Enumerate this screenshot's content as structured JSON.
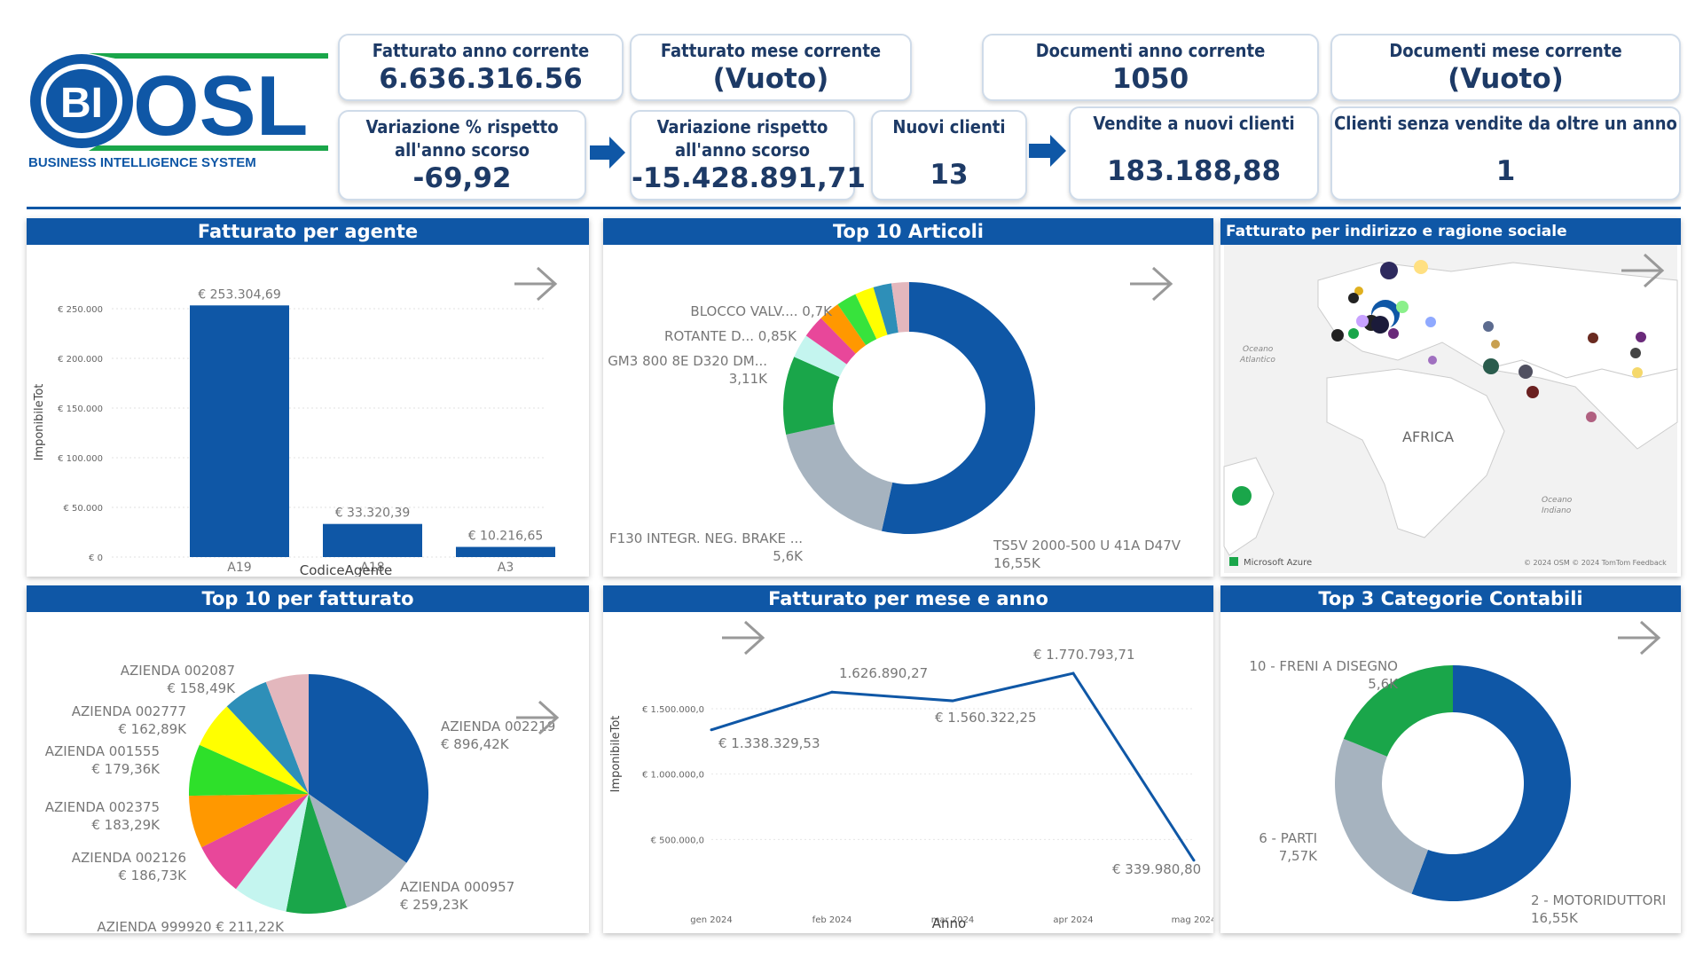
{
  "logo": {
    "bi": "BI",
    "brand": "OSL",
    "tagline": "BUSINESS INTELLIGENCE SYSTEM"
  },
  "kpis": {
    "fatt_anno": {
      "label": "Fatturato anno corrente",
      "value": "6.636.316.56"
    },
    "fatt_mese": {
      "label": "Fatturato mese corrente",
      "value": "(Vuoto)"
    },
    "doc_anno": {
      "label": "Documenti anno corrente",
      "value": "1050"
    },
    "doc_mese": {
      "label": "Documenti mese corrente",
      "value": "(Vuoto)"
    },
    "var_pct": {
      "label1": "Variazione % rispetto",
      "label2": "all'anno scorso",
      "value": "-69,92"
    },
    "var_abs": {
      "label1": "Variazione rispetto",
      "label2": "all'anno scorso",
      "value": "-15.428.891,71"
    },
    "nuovi_clienti": {
      "label": "Nuovi clienti",
      "value": "13"
    },
    "vendite_nuovi": {
      "label": "Vendite a nuovi clienti",
      "value": "183.188,88"
    },
    "clienti_senza": {
      "label": "Clienti senza vendite da oltre un anno",
      "value": "1"
    }
  },
  "panels": {
    "agente": {
      "title": "Fatturato per agente"
    },
    "articoli": {
      "title": "Top 10 Articoli"
    },
    "mappa": {
      "title": "Fatturato per indirizzo e ragione sociale",
      "africa": "AFRICA",
      "oc_atl1": "Oceano",
      "oc_atl2": "Atlantico",
      "oc_ind1": "Oceano",
      "oc_ind2": "Indiano",
      "azure": "Microsoft Azure",
      "credits": "© 2024 OSM  © 2024 TomTom  Feedback"
    },
    "top10": {
      "title": "Top 10 per fatturato"
    },
    "mese": {
      "title": "Fatturato per mese e anno"
    },
    "categorie": {
      "title": "Top 3 Categorie Contabili"
    }
  },
  "chart_data": [
    {
      "type": "bar",
      "title": "Fatturato per agente",
      "xlabel": "CodiceAgente",
      "ylabel": "ImponibileTot",
      "categories": [
        "A19",
        "A18",
        "A3"
      ],
      "values": [
        253304.69,
        33320.39,
        10216.65
      ],
      "value_labels": [
        "€ 253.304,69",
        "€ 33.320,39",
        "€ 10.216,65"
      ],
      "y_ticks": [
        "€ 0",
        "€ 50.000",
        "€ 100.000",
        "€ 150.000",
        "€ 200.000",
        "€ 250.000"
      ],
      "ylim": [
        0,
        250000
      ],
      "color": "#0f57a6"
    },
    {
      "type": "pie",
      "title": "Top 10 Articoli",
      "donut": true,
      "slices": [
        {
          "value": 16.55,
          "color": "#0f57a6"
        },
        {
          "value": 5.6,
          "color": "#a6b3bf"
        },
        {
          "value": 3.11,
          "color": "#1aa64a"
        },
        {
          "value": 0.95,
          "color": "#c4f5ef"
        },
        {
          "value": 0.9,
          "color": "#e8479a"
        },
        {
          "value": 0.85,
          "color": "#ff9800"
        },
        {
          "value": 0.8,
          "color": "#37e33c"
        },
        {
          "value": 0.75,
          "color": "#ffff00"
        },
        {
          "value": 0.72,
          "color": "#2e8fb8"
        },
        {
          "value": 0.7,
          "color": "#e3b7bd"
        }
      ],
      "labels": [
        {
          "line1": "TS5V 2000-500 U 41A D47V",
          "line2": "16,55K"
        },
        {
          "line1": "F130 INTEGR. NEG. BRAKE ...",
          "line2": "5,6K"
        },
        {
          "line1": "GM3 800 8E D320 DM...",
          "line2": "3,11K"
        },
        {
          "line1": "ROTANTE D... 0,85K",
          "line2": ""
        },
        {
          "line1": "BLOCCO VALV.... 0,7K",
          "line2": ""
        }
      ]
    },
    {
      "type": "pie",
      "title": "Top 10 per fatturato",
      "slices": [
        {
          "value": 896.42,
          "color": "#0f57a6"
        },
        {
          "value": 259.23,
          "color": "#a6b3bf"
        },
        {
          "value": 211.22,
          "color": "#1aa64a"
        },
        {
          "value": 190.0,
          "color": "#c4f5ef"
        },
        {
          "value": 186.73,
          "color": "#e8479a"
        },
        {
          "value": 183.29,
          "color": "#ff9800"
        },
        {
          "value": 179.36,
          "color": "#2ee02a"
        },
        {
          "value": 162.89,
          "color": "#ffff00"
        },
        {
          "value": 158.49,
          "color": "#2e8fb8"
        },
        {
          "value": 150.0,
          "color": "#e3b7bd"
        }
      ],
      "labels": [
        {
          "line1": "AZIENDA 002219",
          "line2": "€ 896,42K"
        },
        {
          "line1": "AZIENDA 000957",
          "line2": "€ 259,23K"
        },
        {
          "line1": "AZIENDA 999920 € 211,22K",
          "line2": ""
        },
        {
          "line1": "AZIENDA 002126",
          "line2": "€ 186,73K"
        },
        {
          "line1": "AZIENDA 002375",
          "line2": "€ 183,29K"
        },
        {
          "line1": "AZIENDA 001555",
          "line2": "€ 179,36K"
        },
        {
          "line1": "AZIENDA 002777",
          "line2": "€ 162,89K"
        },
        {
          "line1": "AZIENDA 002087",
          "line2": "€ 158,49K"
        }
      ]
    },
    {
      "type": "line",
      "title": "Fatturato per mese e anno",
      "xlabel": "Anno",
      "ylabel": "ImponibileTot",
      "x": [
        "gen 2024",
        "feb 2024",
        "mar 2024",
        "apr 2024",
        "mag 2024"
      ],
      "values": [
        1338329.53,
        1626890.27,
        1560322.25,
        1770793.71,
        339980.8
      ],
      "value_labels": [
        "€ 1.338.329,53",
        "1.626.890,27",
        "€ 1.560.322,25",
        "€ 1.770.793,71",
        "€ 339.980,80"
      ],
      "y_ticks": [
        "€ 500.000,0",
        "€ 1.000.000,0",
        "€ 1.500.000,0"
      ],
      "ylim": [
        0,
        1900000
      ],
      "color": "#0f57a6"
    },
    {
      "type": "pie",
      "title": "Top 3 Categorie Contabili",
      "donut": true,
      "slices": [
        {
          "value": 16.55,
          "color": "#0f57a6"
        },
        {
          "value": 7.57,
          "color": "#a6b3bf"
        },
        {
          "value": 5.6,
          "color": "#1aa64a"
        }
      ],
      "labels": [
        {
          "line1": "2 - MOTORIDUTTORI",
          "line2": "16,55K"
        },
        {
          "line1": "6 - PARTI",
          "line2": "7,57K"
        },
        {
          "line1": "10 - FRENI A DISEGNO",
          "line2": "5,6K"
        }
      ]
    }
  ]
}
